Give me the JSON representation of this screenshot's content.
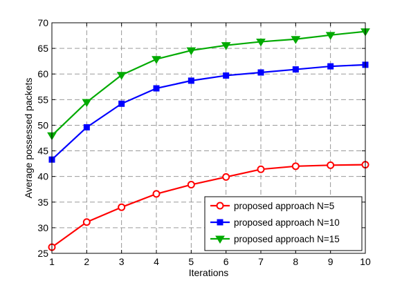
{
  "chart_data": {
    "type": "line",
    "x": [
      1,
      2,
      3,
      4,
      5,
      6,
      7,
      8,
      9,
      10
    ],
    "xlabel": "Iterations",
    "ylabel": "Average possessed packets",
    "xlim": [
      1,
      10
    ],
    "ylim": [
      25,
      70
    ],
    "xticks": [
      1,
      2,
      3,
      4,
      5,
      6,
      7,
      8,
      9,
      10
    ],
    "yticks": [
      25,
      30,
      35,
      40,
      45,
      50,
      55,
      60,
      65,
      70
    ],
    "grid": true,
    "legend_position": "bottom-right",
    "series": [
      {
        "name": "proposed approach N=5",
        "color": "#ff0000",
        "marker": "circle",
        "values": [
          26.2,
          31.1,
          34.0,
          36.6,
          38.4,
          39.9,
          41.4,
          42.0,
          42.2,
          42.3
        ]
      },
      {
        "name": "proposed approach N=10",
        "color": "#0000ff",
        "marker": "square",
        "values": [
          43.3,
          49.6,
          54.2,
          57.2,
          58.7,
          59.7,
          60.3,
          60.9,
          61.5,
          61.8
        ]
      },
      {
        "name": "proposed approach N=15",
        "color": "#00aa00",
        "marker": "triangle-down",
        "values": [
          48.0,
          54.5,
          59.8,
          62.9,
          64.6,
          65.6,
          66.3,
          66.8,
          67.6,
          68.3
        ]
      }
    ]
  }
}
